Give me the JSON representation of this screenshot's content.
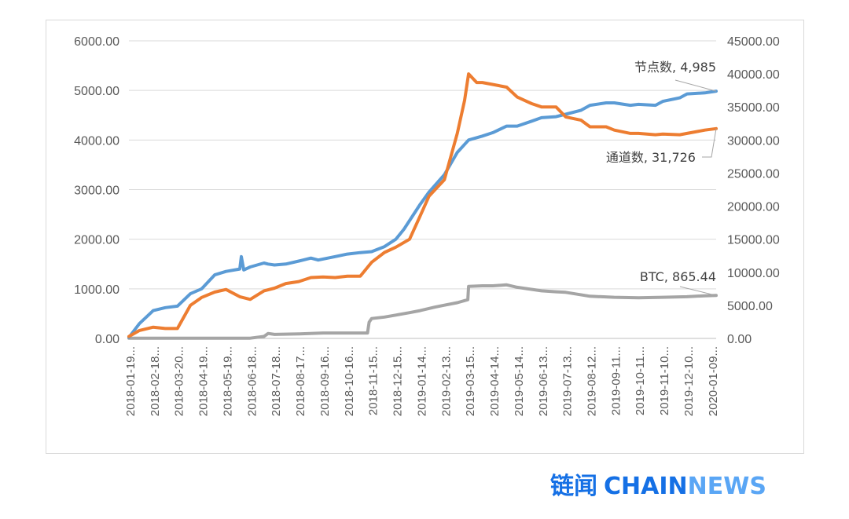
{
  "chart_data": {
    "type": "line",
    "title": "",
    "y_left": {
      "min": 0,
      "max": 6000,
      "ticks": [
        "0.00",
        "1000.00",
        "2000.00",
        "3000.00",
        "4000.00",
        "5000.00",
        "6000.00"
      ]
    },
    "y_right": {
      "min": 0,
      "max": 45000,
      "ticks": [
        "0.00",
        "5000.00",
        "10000.00",
        "15000.00",
        "20000.00",
        "25000.00",
        "30000.00",
        "35000.00",
        "40000.00",
        "45000.00"
      ]
    },
    "x_ticks": [
      "2018-01-19...",
      "2018-02-18...",
      "2018-03-20...",
      "2018-04-19...",
      "2018-05-19...",
      "2018-06-18...",
      "2018-07-18...",
      "2018-08-17...",
      "2018-09-16...",
      "2018-10-16...",
      "2018-11-15...",
      "2018-12-15...",
      "2019-01-14...",
      "2019-02-13...",
      "2019-03-15...",
      "2019-04-14...",
      "2019-05-14...",
      "2019-06-13...",
      "2019-07-13...",
      "2019-08-12...",
      "2019-09-11...",
      "2019-10-11...",
      "2019-11-10...",
      "2019-12-10...",
      "2020-01-09..."
    ],
    "series": [
      {
        "name": "节点数",
        "axis": "left",
        "color": "#5b9bd5",
        "x": [
          "2018-01-19",
          "2018-02-01",
          "2018-02-18",
          "2018-03-05",
          "2018-03-20",
          "2018-04-05",
          "2018-04-19",
          "2018-05-05",
          "2018-05-19",
          "2018-06-05",
          "2018-06-07",
          "2018-06-10",
          "2018-06-18",
          "2018-07-05",
          "2018-07-10",
          "2018-07-18",
          "2018-08-01",
          "2018-08-17",
          "2018-09-01",
          "2018-09-10",
          "2018-09-16",
          "2018-10-01",
          "2018-10-16",
          "2018-11-01",
          "2018-11-15",
          "2018-12-01",
          "2018-12-15",
          "2018-12-25",
          "2019-01-14",
          "2019-01-25",
          "2019-02-13",
          "2019-03-01",
          "2019-03-15",
          "2019-04-01",
          "2019-04-14",
          "2019-05-01",
          "2019-05-14",
          "2019-06-01",
          "2019-06-13",
          "2019-07-01",
          "2019-07-13",
          "2019-08-01",
          "2019-08-12",
          "2019-09-01",
          "2019-09-11",
          "2019-10-01",
          "2019-10-11",
          "2019-11-01",
          "2019-11-10",
          "2019-12-01",
          "2019-12-10",
          "2020-01-01",
          "2020-01-15"
        ],
        "values": [
          20,
          300,
          560,
          620,
          650,
          900,
          1000,
          1280,
          1350,
          1400,
          1650,
          1380,
          1440,
          1520,
          1500,
          1480,
          1500,
          1560,
          1620,
          1580,
          1600,
          1650,
          1700,
          1730,
          1750,
          1850,
          2000,
          2200,
          2700,
          2950,
          3300,
          3750,
          4000,
          4080,
          4150,
          4280,
          4280,
          4380,
          4450,
          4470,
          4520,
          4600,
          4700,
          4750,
          4750,
          4700,
          4720,
          4700,
          4780,
          4850,
          4930,
          4950,
          4985
        ]
      },
      {
        "name": "通道数",
        "axis": "right",
        "color": "#ed7d31",
        "x": [
          "2018-01-19",
          "2018-02-01",
          "2018-02-18",
          "2018-03-05",
          "2018-03-20",
          "2018-04-05",
          "2018-04-19",
          "2018-05-05",
          "2018-05-19",
          "2018-06-05",
          "2018-06-18",
          "2018-07-05",
          "2018-07-18",
          "2018-08-01",
          "2018-08-17",
          "2018-09-01",
          "2018-09-16",
          "2018-10-01",
          "2018-10-16",
          "2018-11-01",
          "2018-11-15",
          "2018-12-01",
          "2018-12-15",
          "2019-01-01",
          "2019-01-14",
          "2019-01-25",
          "2019-02-13",
          "2019-03-01",
          "2019-03-10",
          "2019-03-15",
          "2019-03-25",
          "2019-04-01",
          "2019-04-14",
          "2019-05-01",
          "2019-05-14",
          "2019-06-01",
          "2019-06-13",
          "2019-07-01",
          "2019-07-13",
          "2019-08-01",
          "2019-08-12",
          "2019-09-01",
          "2019-09-11",
          "2019-10-01",
          "2019-10-11",
          "2019-11-01",
          "2019-11-10",
          "2019-12-01",
          "2019-12-10",
          "2020-01-01",
          "2020-01-15"
        ],
        "values": [
          300,
          1200,
          1700,
          1500,
          1500,
          5000,
          6200,
          7000,
          7400,
          6300,
          5900,
          7200,
          7600,
          8300,
          8600,
          9200,
          9300,
          9200,
          9400,
          9400,
          11500,
          13000,
          13800,
          15000,
          18500,
          21500,
          24000,
          31000,
          36000,
          40000,
          38700,
          38700,
          38400,
          38000,
          36500,
          35500,
          35000,
          35000,
          33500,
          33000,
          32000,
          32000,
          31500,
          31000,
          31000,
          30800,
          30900,
          30800,
          31000,
          31500,
          31726
        ]
      },
      {
        "name": "BTC",
        "axis": "left",
        "color": "#a5a5a5",
        "x": [
          "2018-01-19",
          "2018-06-18",
          "2018-07-05",
          "2018-07-10",
          "2018-07-18",
          "2018-08-17",
          "2018-09-16",
          "2018-10-16",
          "2018-11-10",
          "2018-11-12",
          "2018-11-15",
          "2018-12-01",
          "2018-12-15",
          "2019-01-01",
          "2019-01-14",
          "2019-02-01",
          "2019-02-13",
          "2019-03-01",
          "2019-03-14",
          "2019-03-15",
          "2019-04-01",
          "2019-04-14",
          "2019-05-01",
          "2019-05-14",
          "2019-06-13",
          "2019-07-01",
          "2019-07-13",
          "2019-08-12",
          "2019-09-11",
          "2019-10-11",
          "2019-11-10",
          "2019-12-10",
          "2020-01-01",
          "2020-01-15"
        ],
        "values": [
          5,
          5,
          40,
          100,
          80,
          90,
          110,
          110,
          110,
          330,
          400,
          430,
          470,
          520,
          560,
          630,
          670,
          720,
          780,
          1050,
          1060,
          1060,
          1080,
          1030,
          960,
          940,
          930,
          850,
          830,
          820,
          830,
          840,
          860,
          865.44
        ]
      }
    ],
    "x_range": [
      "2018-01-19",
      "2020-01-15"
    ]
  },
  "annotations": [
    {
      "text": "节点数, 4,985"
    },
    {
      "text": "通道数, 31,726"
    },
    {
      "text": "BTC, 865.44"
    }
  ],
  "brand": {
    "cn": "链闻",
    "chain": "CHAIN",
    "news": "NEWS"
  }
}
